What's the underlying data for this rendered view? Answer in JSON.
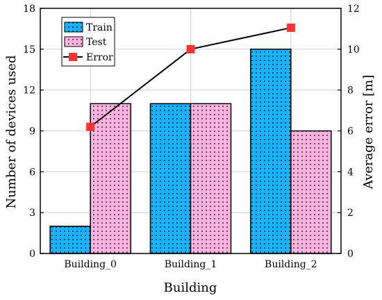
{
  "chart_data": {
    "type": "bar",
    "title": "",
    "categories": [
      "Building_0",
      "Building_1",
      "Building_2"
    ],
    "xlabel": "Building",
    "ylabel": "Number of devices used",
    "y2label": "Average error [m]",
    "ylim": [
      0,
      18
    ],
    "y2lim": [
      0,
      12
    ],
    "yticks": [
      "0",
      "3",
      "6",
      "9",
      "12",
      "15",
      "18"
    ],
    "y2ticks": [
      "0",
      "2",
      "4",
      "6",
      "8",
      "10",
      "12"
    ],
    "grid": true,
    "legend_position": "top-left",
    "series": [
      {
        "name": "Train",
        "kind": "bar",
        "axis": "left",
        "values": [
          2,
          11,
          15
        ],
        "color": "#1ab3ff",
        "pattern": "dots"
      },
      {
        "name": "Test",
        "kind": "bar",
        "axis": "left",
        "values": [
          11,
          11,
          9
        ],
        "color": "#ffb3e0",
        "pattern": "dots"
      },
      {
        "name": "Error",
        "kind": "line",
        "axis": "right",
        "values": [
          6.2,
          10.0,
          11.05
        ],
        "color": "#000000",
        "marker_color": "#ff3333",
        "marker": "square"
      }
    ]
  }
}
